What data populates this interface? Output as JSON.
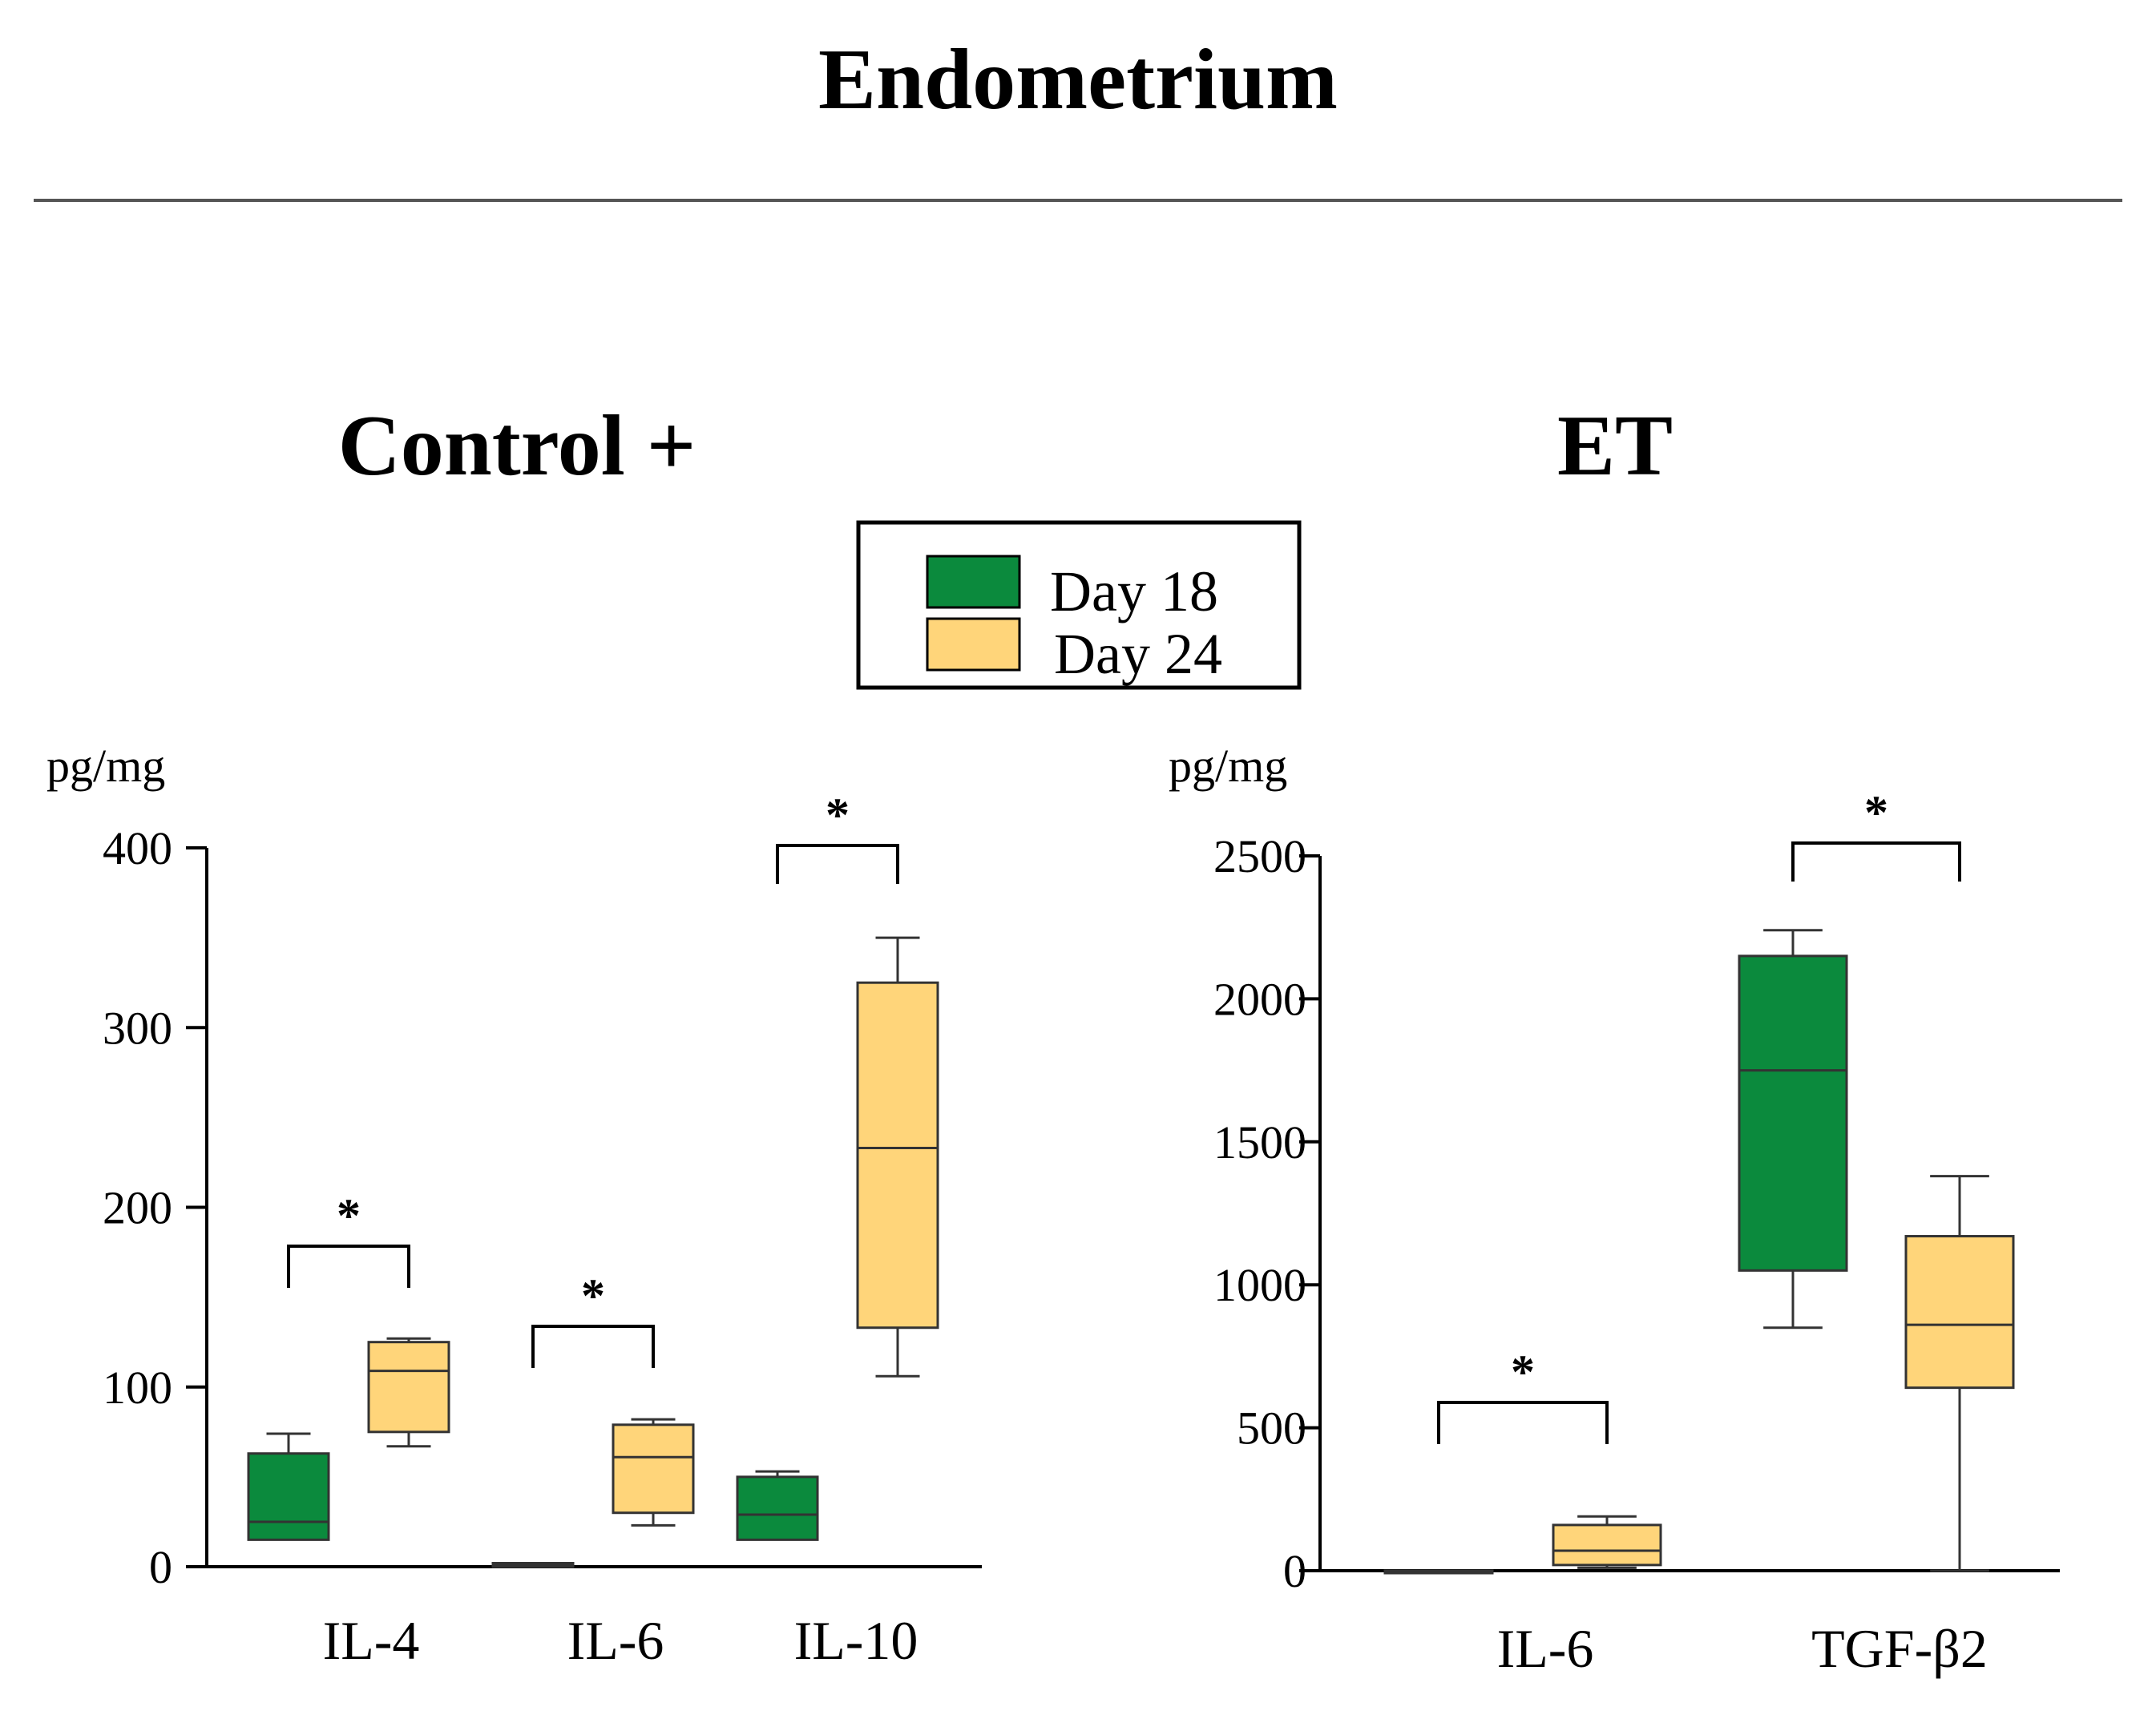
{
  "figure": {
    "title": "Endometrium",
    "colors": {
      "day18": "#0b8a3d",
      "day24": "#ffd57a",
      "line": "#000000",
      "divider": "#555555"
    }
  },
  "legend": [
    {
      "label": "Day 18",
      "color": "#0b8a3d"
    },
    {
      "label": "Day 24",
      "color": "#ffd57a"
    }
  ],
  "chart_data": [
    {
      "type": "boxplot",
      "title": "Control +",
      "ylabel": "pg/mg",
      "ylim": [
        0,
        400
      ],
      "yticks": [
        0,
        100,
        200,
        300,
        400
      ],
      "categories": [
        "IL-4",
        "IL-6",
        "IL-10"
      ],
      "series": [
        {
          "name": "Day 18",
          "boxes": [
            {
              "min": 15,
              "q1": 15,
              "median": 25,
              "q3": 63,
              "max": 74
            },
            {
              "min": 0,
              "q1": 0,
              "median": 1,
              "q3": 2,
              "max": 2
            },
            {
              "min": 15,
              "q1": 15,
              "median": 29,
              "q3": 50,
              "max": 53
            }
          ]
        },
        {
          "name": "Day 24",
          "boxes": [
            {
              "min": 67,
              "q1": 75,
              "median": 109,
              "q3": 125,
              "max": 127
            },
            {
              "min": 23,
              "q1": 30,
              "median": 61,
              "q3": 79,
              "max": 82
            },
            {
              "min": 106,
              "q1": 133,
              "median": 233,
              "q3": 325,
              "max": 350
            }
          ]
        }
      ],
      "significance": [
        {
          "category": "IL-4",
          "label": "*"
        },
        {
          "category": "IL-6",
          "label": "*"
        },
        {
          "category": "IL-10",
          "label": "*"
        }
      ]
    },
    {
      "type": "boxplot",
      "title": "ET",
      "ylabel": "pg/mg",
      "ylim": [
        0,
        2500
      ],
      "yticks": [
        0,
        500,
        1000,
        1500,
        2000,
        2500
      ],
      "categories": [
        "IL-6",
        "TGF-β2"
      ],
      "series": [
        {
          "name": "Day 18",
          "boxes": [
            {
              "min": 0,
              "q1": 0,
              "median": 0,
              "q3": 0,
              "max": 0
            },
            {
              "min": 850,
              "q1": 1050,
              "median": 1750,
              "q3": 2150,
              "max": 2240
            }
          ]
        },
        {
          "name": "Day 24",
          "boxes": [
            {
              "min": 10,
              "q1": 20,
              "median": 70,
              "q3": 160,
              "max": 190
            },
            {
              "min": 0,
              "q1": 640,
              "median": 860,
              "q3": 1170,
              "max": 1380
            }
          ]
        }
      ],
      "significance": [
        {
          "category": "IL-6",
          "label": "*"
        },
        {
          "category": "TGF-β2",
          "label": "*"
        }
      ]
    }
  ]
}
